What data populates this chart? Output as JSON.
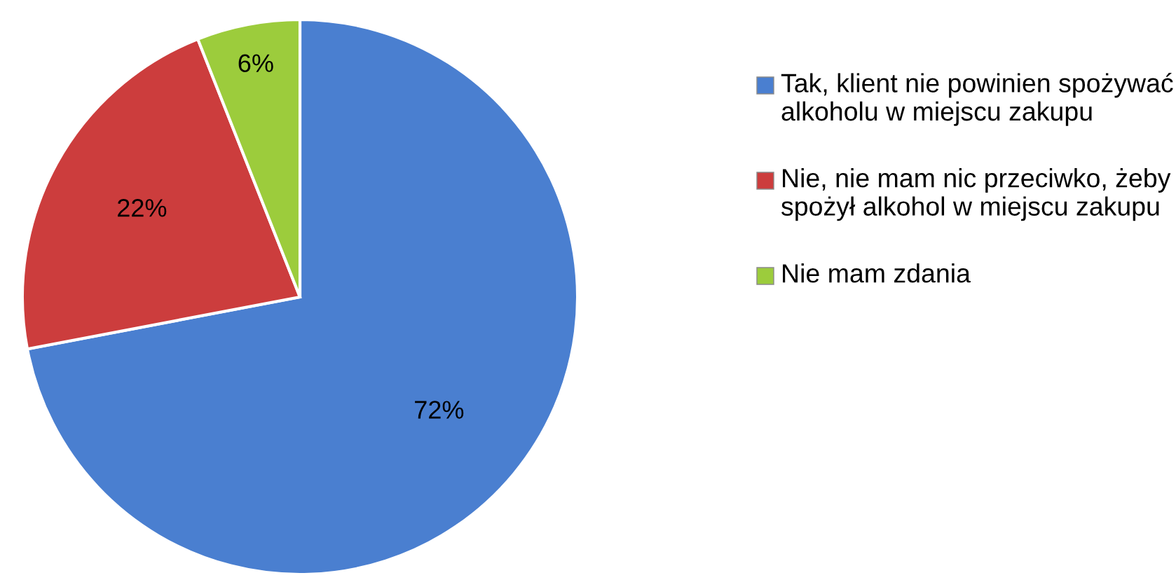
{
  "chart_data": {
    "type": "pie",
    "categories": [
      "Tak, klient nie powinien spożywać alkoholu w miejscu zakupu",
      "Nie, nie mam nic przeciwko, żeby spożył alkohol w miejscu zakupu",
      "Nie mam zdania"
    ],
    "values": [
      72,
      22,
      6
    ],
    "value_labels": [
      "72%",
      "22%",
      "6%"
    ],
    "colors": [
      "#4a7fd0",
      "#cc3d3d",
      "#9ccc3c"
    ],
    "legend": "right"
  }
}
